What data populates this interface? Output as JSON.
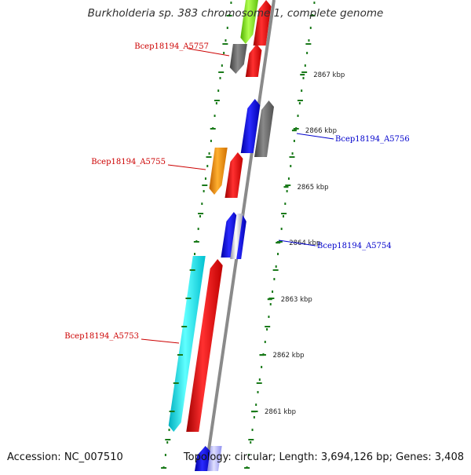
{
  "title": "Burkholderia sp. 383 chromosome 1, complete genome",
  "accession": "Accession: NC_007510",
  "topology": "Topology: circular; Length: 3,694,126 bp; Genes: 3,408",
  "colors": {
    "backbone": "#8a8a8a",
    "tick": "#1a7a1a",
    "red": "#ff1010",
    "blue": "#1010ee",
    "gray": "#6a6a6a",
    "cyan": "#10eaf0",
    "orange": "#ff9900",
    "lime": "#88ee22",
    "label_red": "#cc0000",
    "label_blue": "#0000cc"
  },
  "scale_labels": [
    "2867 kbp",
    "2866 kbp",
    "2865 kbp",
    "2864 kbp",
    "2863 kbp",
    "2862 kbp",
    "2861 kbp"
  ],
  "gene_labels": [
    {
      "name": "Bcep18194_A5757",
      "color": "red"
    },
    {
      "name": "Bcep18194_A5756",
      "color": "blue"
    },
    {
      "name": "Bcep18194_A5755",
      "color": "red"
    },
    {
      "name": "Bcep18194_A5754",
      "color": "blue"
    },
    {
      "name": "Bcep18194_A5753",
      "color": "red"
    }
  ],
  "features": [
    {
      "name": "Bcep18194_A5757",
      "color": "gray",
      "strand": "reverse"
    },
    {
      "name": "Bcep18194_A5757-neighbor",
      "color": "red",
      "strand": "forward"
    },
    {
      "name": "top-gene-lime",
      "color": "lime",
      "strand": "reverse"
    },
    {
      "name": "top-gene-red",
      "color": "red",
      "strand": "forward"
    },
    {
      "name": "Bcep18194_A5756",
      "color": "blue",
      "strand": "forward"
    },
    {
      "name": "Bcep18194_A5756-partner",
      "color": "gray",
      "strand": "forward"
    },
    {
      "name": "Bcep18194_A5755",
      "color": "orange",
      "strand": "reverse"
    },
    {
      "name": "Bcep18194_A5755-partner",
      "color": "red",
      "strand": "forward"
    },
    {
      "name": "Bcep18194_A5754",
      "color": "blue",
      "strand": "forward"
    },
    {
      "name": "Bcep18194_A5754-partner",
      "color": "blue",
      "strand": "forward"
    },
    {
      "name": "Bcep18194_A5753",
      "color": "cyan",
      "strand": "reverse"
    },
    {
      "name": "Bcep18194_A5753-partner",
      "color": "red",
      "strand": "forward"
    },
    {
      "name": "bottom-gene-blue",
      "color": "blue",
      "strand": "forward"
    }
  ]
}
